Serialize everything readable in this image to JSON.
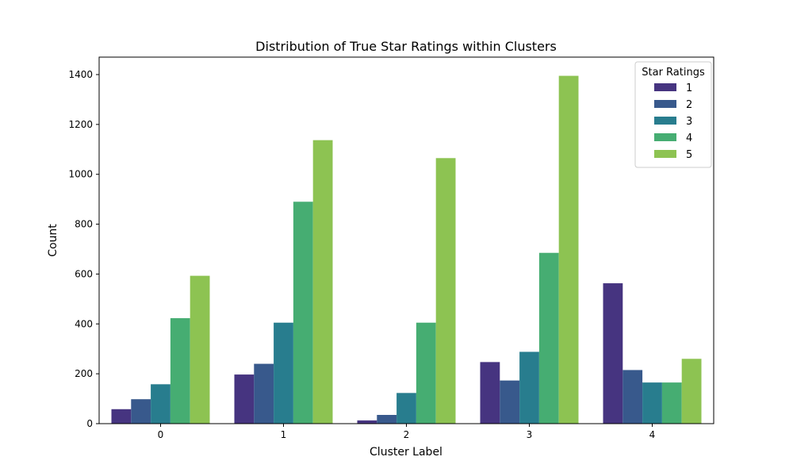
{
  "chart_data": {
    "type": "bar",
    "title": "Distribution of True Star Ratings within Clusters",
    "xlabel": "Cluster Label",
    "ylabel": "Count",
    "categories": [
      "0",
      "1",
      "2",
      "3",
      "4"
    ],
    "ylim": [
      0,
      1470
    ],
    "yticks": [
      0,
      200,
      400,
      600,
      800,
      1000,
      1200,
      1400
    ],
    "legend": {
      "title": "Star Ratings",
      "position": "top-right"
    },
    "series": [
      {
        "name": "1",
        "color": "#463480",
        "values": [
          58,
          197,
          13,
          247,
          563
        ]
      },
      {
        "name": "2",
        "color": "#38598c",
        "values": [
          98,
          240,
          35,
          173,
          215
        ]
      },
      {
        "name": "3",
        "color": "#287d8e",
        "values": [
          158,
          405,
          123,
          288,
          165
        ]
      },
      {
        "name": "4",
        "color": "#46ad72",
        "values": [
          423,
          890,
          405,
          685,
          165
        ]
      },
      {
        "name": "5",
        "color": "#8dc352",
        "values": [
          593,
          1137,
          1065,
          1395,
          260
        ]
      }
    ]
  }
}
